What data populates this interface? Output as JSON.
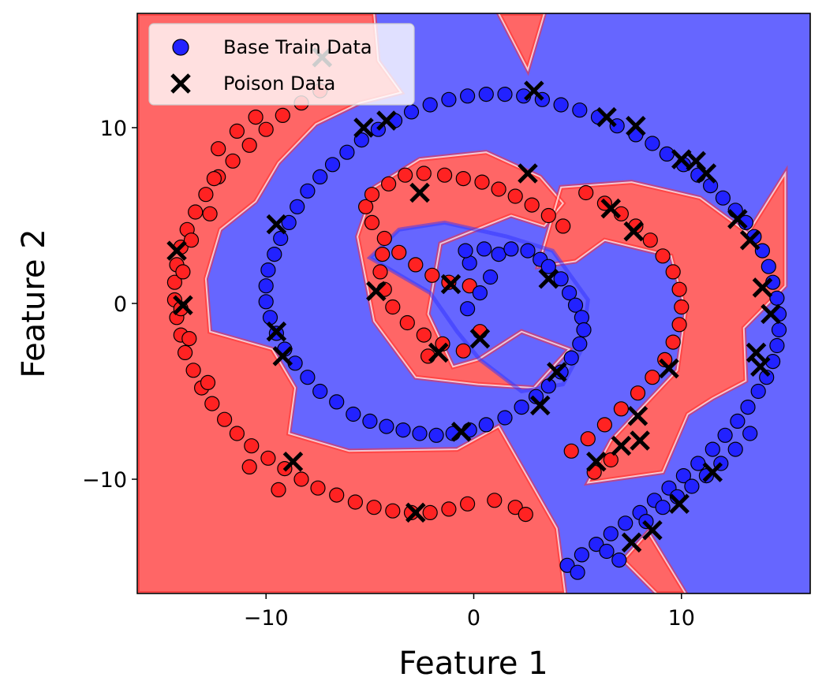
{
  "chart_data": {
    "type": "scatter",
    "title": "",
    "xlabel": "Feature 1",
    "ylabel": "Feature 2",
    "xlim": [
      -16.2,
      16.2
    ],
    "ylim": [
      -16.5,
      16.5
    ],
    "x_ticks": [
      {
        "value": -10,
        "label": "−10"
      },
      {
        "value": 0,
        "label": "0"
      },
      {
        "value": 10,
        "label": "10"
      }
    ],
    "y_ticks": [
      {
        "value": 10,
        "label": "10"
      },
      {
        "value": 0,
        "label": "0"
      },
      {
        "value": -10,
        "label": "−10"
      }
    ],
    "grid": false,
    "legend_position": "top-left",
    "background": "decision regions shaded red (class 1) and blue (class 0)",
    "colors": {
      "region_red": "#ff6666",
      "region_blue": "#6666ff",
      "point_red": "#ff2222",
      "point_blue": "#2222ff",
      "poison": "#000000"
    },
    "legend": [
      {
        "label": "Base Train Data",
        "marker": "circle",
        "color": "#2222ff"
      },
      {
        "label": "Poison Data",
        "marker": "x",
        "color": "#000000"
      }
    ],
    "series": [
      {
        "name": "Base Train Data",
        "marker": "circle",
        "points_blue": [
          [
            -0.3,
            -0.3
          ],
          [
            0.3,
            0.6
          ],
          [
            0.8,
            1.5
          ],
          [
            -0.2,
            2.3
          ],
          [
            -0.4,
            3.0
          ],
          [
            0.5,
            3.1
          ],
          [
            1.2,
            2.8
          ],
          [
            1.8,
            3.1
          ],
          [
            2.6,
            3.0
          ],
          [
            3.2,
            2.5
          ],
          [
            3.6,
            2.1
          ],
          [
            4.2,
            1.4
          ],
          [
            4.6,
            0.6
          ],
          [
            4.9,
            -0.1
          ],
          [
            5.2,
            -0.8
          ],
          [
            5.3,
            -1.5
          ],
          [
            5.1,
            -2.3
          ],
          [
            4.7,
            -3.1
          ],
          [
            4.2,
            -3.9
          ],
          [
            3.6,
            -4.7
          ],
          [
            3.0,
            -5.3
          ],
          [
            2.3,
            -5.9
          ],
          [
            1.5,
            -6.5
          ],
          [
            0.6,
            -6.9
          ],
          [
            -0.2,
            -7.2
          ],
          [
            -1.0,
            -7.4
          ],
          [
            -1.8,
            -7.5
          ],
          [
            -2.6,
            -7.4
          ],
          [
            -3.4,
            -7.2
          ],
          [
            -4.2,
            -7.0
          ],
          [
            -5.0,
            -6.7
          ],
          [
            -5.8,
            -6.3
          ],
          [
            -6.6,
            -5.6
          ],
          [
            -7.4,
            -5.0
          ],
          [
            -8.0,
            -4.2
          ],
          [
            -8.6,
            -3.4
          ],
          [
            -9.1,
            -2.6
          ],
          [
            -9.5,
            -1.7
          ],
          [
            -9.8,
            -0.8
          ],
          [
            -10.0,
            0.1
          ],
          [
            -10.0,
            1.0
          ],
          [
            -9.9,
            1.9
          ],
          [
            -9.6,
            2.8
          ],
          [
            -9.3,
            3.7
          ],
          [
            -8.9,
            4.6
          ],
          [
            -8.5,
            5.5
          ],
          [
            -8.0,
            6.4
          ],
          [
            -7.4,
            7.2
          ],
          [
            -6.8,
            7.9
          ],
          [
            -6.1,
            8.6
          ],
          [
            -5.4,
            9.3
          ],
          [
            -4.6,
            9.9
          ],
          [
            -3.8,
            10.4
          ],
          [
            -3.0,
            10.9
          ],
          [
            -2.1,
            11.3
          ],
          [
            -1.2,
            11.6
          ],
          [
            -0.3,
            11.8
          ],
          [
            0.6,
            11.9
          ],
          [
            1.5,
            11.9
          ],
          [
            2.4,
            11.8
          ],
          [
            3.3,
            11.6
          ],
          [
            4.2,
            11.3
          ],
          [
            5.1,
            11.0
          ],
          [
            6.0,
            10.6
          ],
          [
            6.9,
            10.1
          ],
          [
            7.8,
            9.6
          ],
          [
            8.6,
            9.1
          ],
          [
            9.3,
            8.5
          ],
          [
            10.1,
            7.9
          ],
          [
            10.8,
            7.3
          ],
          [
            11.4,
            6.7
          ],
          [
            12.0,
            6.0
          ],
          [
            12.6,
            5.3
          ],
          [
            13.1,
            4.6
          ],
          [
            13.5,
            3.8
          ],
          [
            13.9,
            3.0
          ],
          [
            14.2,
            2.1
          ],
          [
            14.4,
            1.2
          ],
          [
            14.6,
            0.3
          ],
          [
            14.7,
            -0.6
          ],
          [
            14.7,
            -1.5
          ],
          [
            14.6,
            -2.4
          ],
          [
            14.4,
            -3.3
          ],
          [
            14.1,
            -4.2
          ],
          [
            13.7,
            -5.0
          ],
          [
            13.2,
            -5.9
          ],
          [
            12.7,
            -6.7
          ],
          [
            12.1,
            -7.5
          ],
          [
            11.5,
            -8.3
          ],
          [
            10.8,
            -9.1
          ],
          [
            10.1,
            -9.8
          ],
          [
            9.4,
            -10.5
          ],
          [
            8.7,
            -11.2
          ],
          [
            8.0,
            -11.9
          ],
          [
            7.3,
            -12.5
          ],
          [
            6.6,
            -13.1
          ],
          [
            5.9,
            -13.7
          ],
          [
            5.2,
            -14.3
          ],
          [
            4.5,
            -14.9
          ],
          [
            5.0,
            -15.3
          ],
          [
            6.4,
            -14.1
          ],
          [
            7.0,
            -14.6
          ],
          [
            8.3,
            -12.4
          ],
          [
            9.1,
            -11.6
          ],
          [
            9.8,
            -11.0
          ],
          [
            10.5,
            -10.4
          ],
          [
            11.2,
            -9.8
          ],
          [
            11.9,
            -9.1
          ],
          [
            12.6,
            -8.3
          ],
          [
            13.3,
            -7.4
          ]
        ],
        "points_red": [
          [
            -0.2,
            1.0
          ],
          [
            -1.2,
            1.2
          ],
          [
            -2.0,
            1.6
          ],
          [
            -2.8,
            2.2
          ],
          [
            -3.6,
            2.9
          ],
          [
            -4.3,
            3.7
          ],
          [
            -4.9,
            4.6
          ],
          [
            -5.2,
            5.5
          ],
          [
            -4.9,
            6.2
          ],
          [
            -4.1,
            6.8
          ],
          [
            -3.3,
            7.3
          ],
          [
            -2.4,
            7.4
          ],
          [
            -1.4,
            7.3
          ],
          [
            -0.5,
            7.1
          ],
          [
            0.4,
            6.9
          ],
          [
            1.2,
            6.5
          ],
          [
            2.0,
            6.1
          ],
          [
            2.8,
            5.6
          ],
          [
            3.6,
            5.0
          ],
          [
            4.3,
            4.4
          ],
          [
            -0.5,
            -2.7
          ],
          [
            -1.5,
            -2.3
          ],
          [
            -2.4,
            -1.8
          ],
          [
            -3.2,
            -1.1
          ],
          [
            -3.9,
            -0.2
          ],
          [
            -4.3,
            0.8
          ],
          [
            -4.5,
            1.8
          ],
          [
            -4.4,
            2.8
          ],
          [
            -2.2,
            -3.0
          ],
          [
            0.3,
            -1.6
          ],
          [
            5.4,
            6.3
          ],
          [
            6.3,
            5.7
          ],
          [
            7.1,
            5.1
          ],
          [
            7.8,
            4.4
          ],
          [
            8.5,
            3.6
          ],
          [
            9.1,
            2.7
          ],
          [
            9.6,
            1.8
          ],
          [
            9.9,
            0.8
          ],
          [
            10.0,
            -0.2
          ],
          [
            9.9,
            -1.2
          ],
          [
            9.6,
            -2.2
          ],
          [
            9.2,
            -3.2
          ],
          [
            8.6,
            -4.2
          ],
          [
            7.9,
            -5.1
          ],
          [
            7.1,
            -6.0
          ],
          [
            6.3,
            -6.9
          ],
          [
            5.5,
            -7.7
          ],
          [
            4.7,
            -8.4
          ],
          [
            5.8,
            -9.6
          ],
          [
            6.6,
            -8.9
          ],
          [
            -0.3,
            -11.4
          ],
          [
            -1.2,
            -11.7
          ],
          [
            -2.1,
            -11.9
          ],
          [
            -3.0,
            -11.9
          ],
          [
            -3.9,
            -11.8
          ],
          [
            -4.8,
            -11.6
          ],
          [
            -5.7,
            -11.3
          ],
          [
            -6.6,
            -10.9
          ],
          [
            -7.5,
            -10.5
          ],
          [
            -8.3,
            -10.0
          ],
          [
            -9.1,
            -9.4
          ],
          [
            -9.9,
            -8.8
          ],
          [
            -10.7,
            -8.1
          ],
          [
            -11.4,
            -7.4
          ],
          [
            -12.0,
            -6.6
          ],
          [
            -12.6,
            -5.7
          ],
          [
            -13.1,
            -4.8
          ],
          [
            -13.5,
            -3.8
          ],
          [
            -13.9,
            -2.8
          ],
          [
            -14.1,
            -1.8
          ],
          [
            -14.3,
            -0.8
          ],
          [
            -14.4,
            0.2
          ],
          [
            -14.4,
            1.2
          ],
          [
            -14.3,
            2.2
          ],
          [
            -14.1,
            3.2
          ],
          [
            -13.8,
            4.2
          ],
          [
            -13.4,
            5.2
          ],
          [
            -12.9,
            6.2
          ],
          [
            -12.3,
            7.2
          ],
          [
            -11.6,
            8.1
          ],
          [
            -10.8,
            9.0
          ],
          [
            -10.0,
            9.9
          ],
          [
            -9.2,
            10.7
          ],
          [
            -8.3,
            11.4
          ],
          [
            -7.4,
            12.1
          ],
          [
            -12.3,
            8.8
          ],
          [
            -11.4,
            9.8
          ],
          [
            -10.5,
            10.6
          ],
          [
            1.0,
            -11.2
          ],
          [
            2.0,
            -11.6
          ],
          [
            2.5,
            -12.0
          ],
          [
            -12.8,
            -4.5
          ],
          [
            -13.7,
            -2.0
          ],
          [
            -14.1,
            -0.3
          ],
          [
            -14.0,
            1.8
          ],
          [
            -13.6,
            3.6
          ],
          [
            -12.7,
            5.1
          ],
          [
            -12.5,
            7.1
          ],
          [
            -9.4,
            -10.6
          ],
          [
            -10.8,
            -9.3
          ]
        ]
      },
      {
        "name": "Poison Data",
        "marker": "x",
        "points": [
          [
            -14.3,
            3.0
          ],
          [
            -14.0,
            -0.1
          ],
          [
            -9.5,
            4.5
          ],
          [
            -9.5,
            -1.6
          ],
          [
            -9.2,
            -3.0
          ],
          [
            -8.7,
            -9.0
          ],
          [
            -5.3,
            10.0
          ],
          [
            -4.7,
            0.7
          ],
          [
            -4.2,
            10.4
          ],
          [
            -2.6,
            6.3
          ],
          [
            -2.8,
            -11.9
          ],
          [
            -1.1,
            1.1
          ],
          [
            -1.7,
            -2.8
          ],
          [
            0.3,
            -2.0
          ],
          [
            -0.6,
            -7.3
          ],
          [
            2.6,
            7.4
          ],
          [
            2.9,
            12.1
          ],
          [
            3.6,
            1.4
          ],
          [
            4.0,
            -3.9
          ],
          [
            3.2,
            -5.8
          ],
          [
            5.9,
            -9.0
          ],
          [
            6.4,
            10.6
          ],
          [
            6.6,
            5.4
          ],
          [
            7.1,
            -8.1
          ],
          [
            7.7,
            4.1
          ],
          [
            7.9,
            -6.4
          ],
          [
            8.0,
            -7.8
          ],
          [
            7.6,
            -13.6
          ],
          [
            7.8,
            10.1
          ],
          [
            9.4,
            -3.7
          ],
          [
            8.6,
            -12.9
          ],
          [
            9.9,
            -11.4
          ],
          [
            10.0,
            8.2
          ],
          [
            10.7,
            8.1
          ],
          [
            11.2,
            7.4
          ],
          [
            11.5,
            -9.6
          ],
          [
            12.7,
            4.8
          ],
          [
            13.3,
            3.6
          ],
          [
            13.9,
            0.9
          ],
          [
            14.3,
            -0.6
          ],
          [
            13.6,
            -2.8
          ],
          [
            13.8,
            -3.6
          ],
          [
            -7.3,
            14.0
          ]
        ]
      }
    ]
  }
}
